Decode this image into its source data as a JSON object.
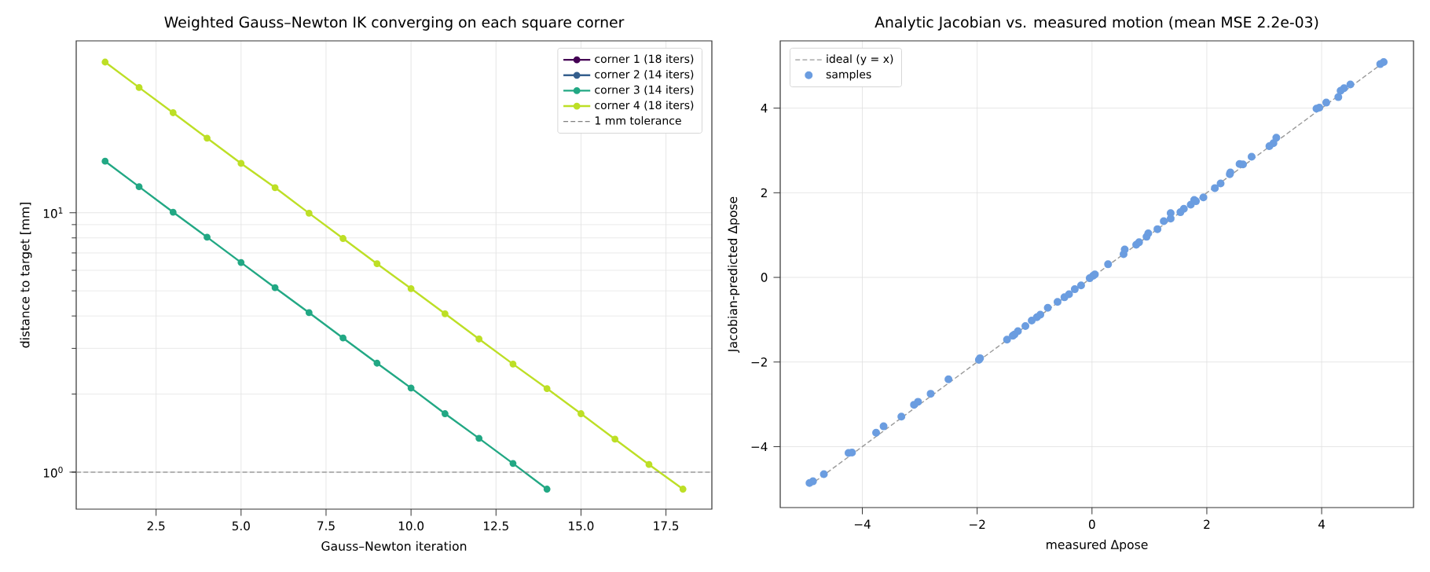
{
  "chart_data": [
    {
      "type": "line",
      "title": "Weighted Gauss–Newton IK converging on each square corner",
      "xlabel": "Gauss–Newton iteration",
      "ylabel": "distance to target [mm]",
      "x": [
        1,
        2,
        3,
        4,
        5,
        6,
        7,
        8,
        9,
        10,
        11,
        12,
        13,
        14,
        15,
        16,
        17,
        18
      ],
      "series": [
        {
          "name": "corner 1  (18 iters)",
          "color": "#440154",
          "values": [
            null,
            null,
            null,
            null,
            null,
            null,
            null,
            null,
            null,
            null,
            null,
            null,
            null,
            null,
            null,
            null,
            null,
            null
          ]
        },
        {
          "name": "corner 2  (14 iters)",
          "color": "#355f8d",
          "values": [
            null,
            null,
            null,
            null,
            null,
            null,
            null,
            null,
            null,
            null,
            null,
            null,
            null,
            null,
            null,
            null,
            null,
            null
          ]
        },
        {
          "name": "corner 3  (14 iters)",
          "color": "#22a884",
          "x": [
            1,
            2,
            3,
            4,
            5,
            6,
            7,
            8,
            9,
            10,
            11,
            12,
            13,
            14
          ],
          "values": [
            15.8,
            12.6,
            10.05,
            8.05,
            6.43,
            5.14,
            4.12,
            3.29,
            2.63,
            2.11,
            1.68,
            1.35,
            1.08,
            0.86
          ]
        },
        {
          "name": "corner 4  (18 iters)",
          "color": "#bddf26",
          "values": [
            38.1,
            30.4,
            24.3,
            19.4,
            15.5,
            12.5,
            9.96,
            7.96,
            6.36,
            5.1,
            4.08,
            3.26,
            2.61,
            2.1,
            1.68,
            1.34,
            1.07,
            0.86
          ]
        }
      ],
      "ref_lines": [
        {
          "axis": "y",
          "value": 1,
          "label": "1 mm tolerance",
          "color": "#808080",
          "line_style": "dashed"
        }
      ],
      "xlim": [
        0.15,
        18.85
      ],
      "ylim": [
        0.72,
        46
      ],
      "xticks": [
        {
          "value": 2.5,
          "label": "2.5"
        },
        {
          "value": 5,
          "label": "5.0"
        },
        {
          "value": 7.5,
          "label": "7.5"
        },
        {
          "value": 10,
          "label": "10.0"
        },
        {
          "value": 12.5,
          "label": "12.5"
        },
        {
          "value": 15,
          "label": "15.0"
        },
        {
          "value": 17.5,
          "label": "17.5"
        }
      ],
      "yticks": [
        {
          "value": 1,
          "label": "10$^{0}$"
        },
        {
          "value": 10,
          "label": "10$^{1}$"
        }
      ],
      "log": "y",
      "grid": true,
      "legend": "top right",
      "marker": "circle"
    },
    {
      "type": "scatter",
      "title": "Analytic Jacobian vs. measured motion  (mean MSE 2.2e-03)",
      "xlabel": "measured Δpose",
      "ylabel": "Jacobian-predicted Δpose",
      "series": [
        {
          "name": "ideal (y = x)",
          "type": "line",
          "line_style": "dashed",
          "color": "#999999",
          "x": [
            -4.92,
            5.08
          ],
          "values": [
            -4.92,
            5.08
          ]
        },
        {
          "name": "samples",
          "color": "#6b9de0",
          "x": [
            -4.92,
            -4.86,
            -4.67,
            -4.24,
            -4.18,
            -3.76,
            -3.63,
            -3.32,
            -3.1,
            -3.03,
            -2.81,
            -2.5,
            -1.97,
            -1.95,
            -1.48,
            -1.38,
            -1.35,
            -1.29,
            -1.16,
            -1.05,
            -0.96,
            -0.9,
            -0.77,
            -0.6,
            -0.48,
            -0.4,
            -0.3,
            -0.19,
            -0.04,
            0.02,
            0.05,
            0.28,
            0.55,
            0.57,
            0.77,
            0.82,
            0.95,
            0.98,
            1.14,
            1.25,
            1.37,
            1.37,
            1.54,
            1.6,
            1.72,
            1.78,
            1.81,
            1.94,
            2.14,
            2.24,
            2.4,
            2.41,
            2.57,
            2.63,
            2.78,
            3.09,
            3.16,
            3.21,
            3.91,
            3.96,
            4.08,
            4.29,
            4.33,
            4.39,
            4.5,
            5.02,
            5.08
          ],
          "values": [
            -4.86,
            -4.82,
            -4.65,
            -4.15,
            -4.14,
            -3.67,
            -3.52,
            -3.29,
            -3.01,
            -2.94,
            -2.75,
            -2.41,
            -1.95,
            -1.91,
            -1.47,
            -1.38,
            -1.35,
            -1.27,
            -1.15,
            -1.02,
            -0.94,
            -0.88,
            -0.72,
            -0.58,
            -0.47,
            -0.4,
            -0.28,
            -0.19,
            -0.02,
            0.04,
            0.07,
            0.31,
            0.55,
            0.66,
            0.77,
            0.83,
            0.96,
            1.04,
            1.14,
            1.33,
            1.39,
            1.52,
            1.54,
            1.62,
            1.72,
            1.83,
            1.8,
            1.89,
            2.11,
            2.22,
            2.44,
            2.48,
            2.68,
            2.67,
            2.85,
            3.1,
            3.17,
            3.3,
            3.99,
            4.01,
            4.13,
            4.26,
            4.41,
            4.47,
            4.56,
            5.04,
            5.09
          ]
        }
      ],
      "xlim": [
        -5.43,
        5.6
      ],
      "ylim": [
        -5.44,
        5.59
      ],
      "xticks": [
        {
          "value": -4,
          "label": "−4"
        },
        {
          "value": -2,
          "label": "−2"
        },
        0,
        2,
        4
      ],
      "yticks": [
        {
          "value": -4,
          "label": "−4"
        },
        {
          "value": -2,
          "label": "−2"
        },
        0,
        2,
        4
      ],
      "grid": true,
      "legend": "top left"
    }
  ]
}
